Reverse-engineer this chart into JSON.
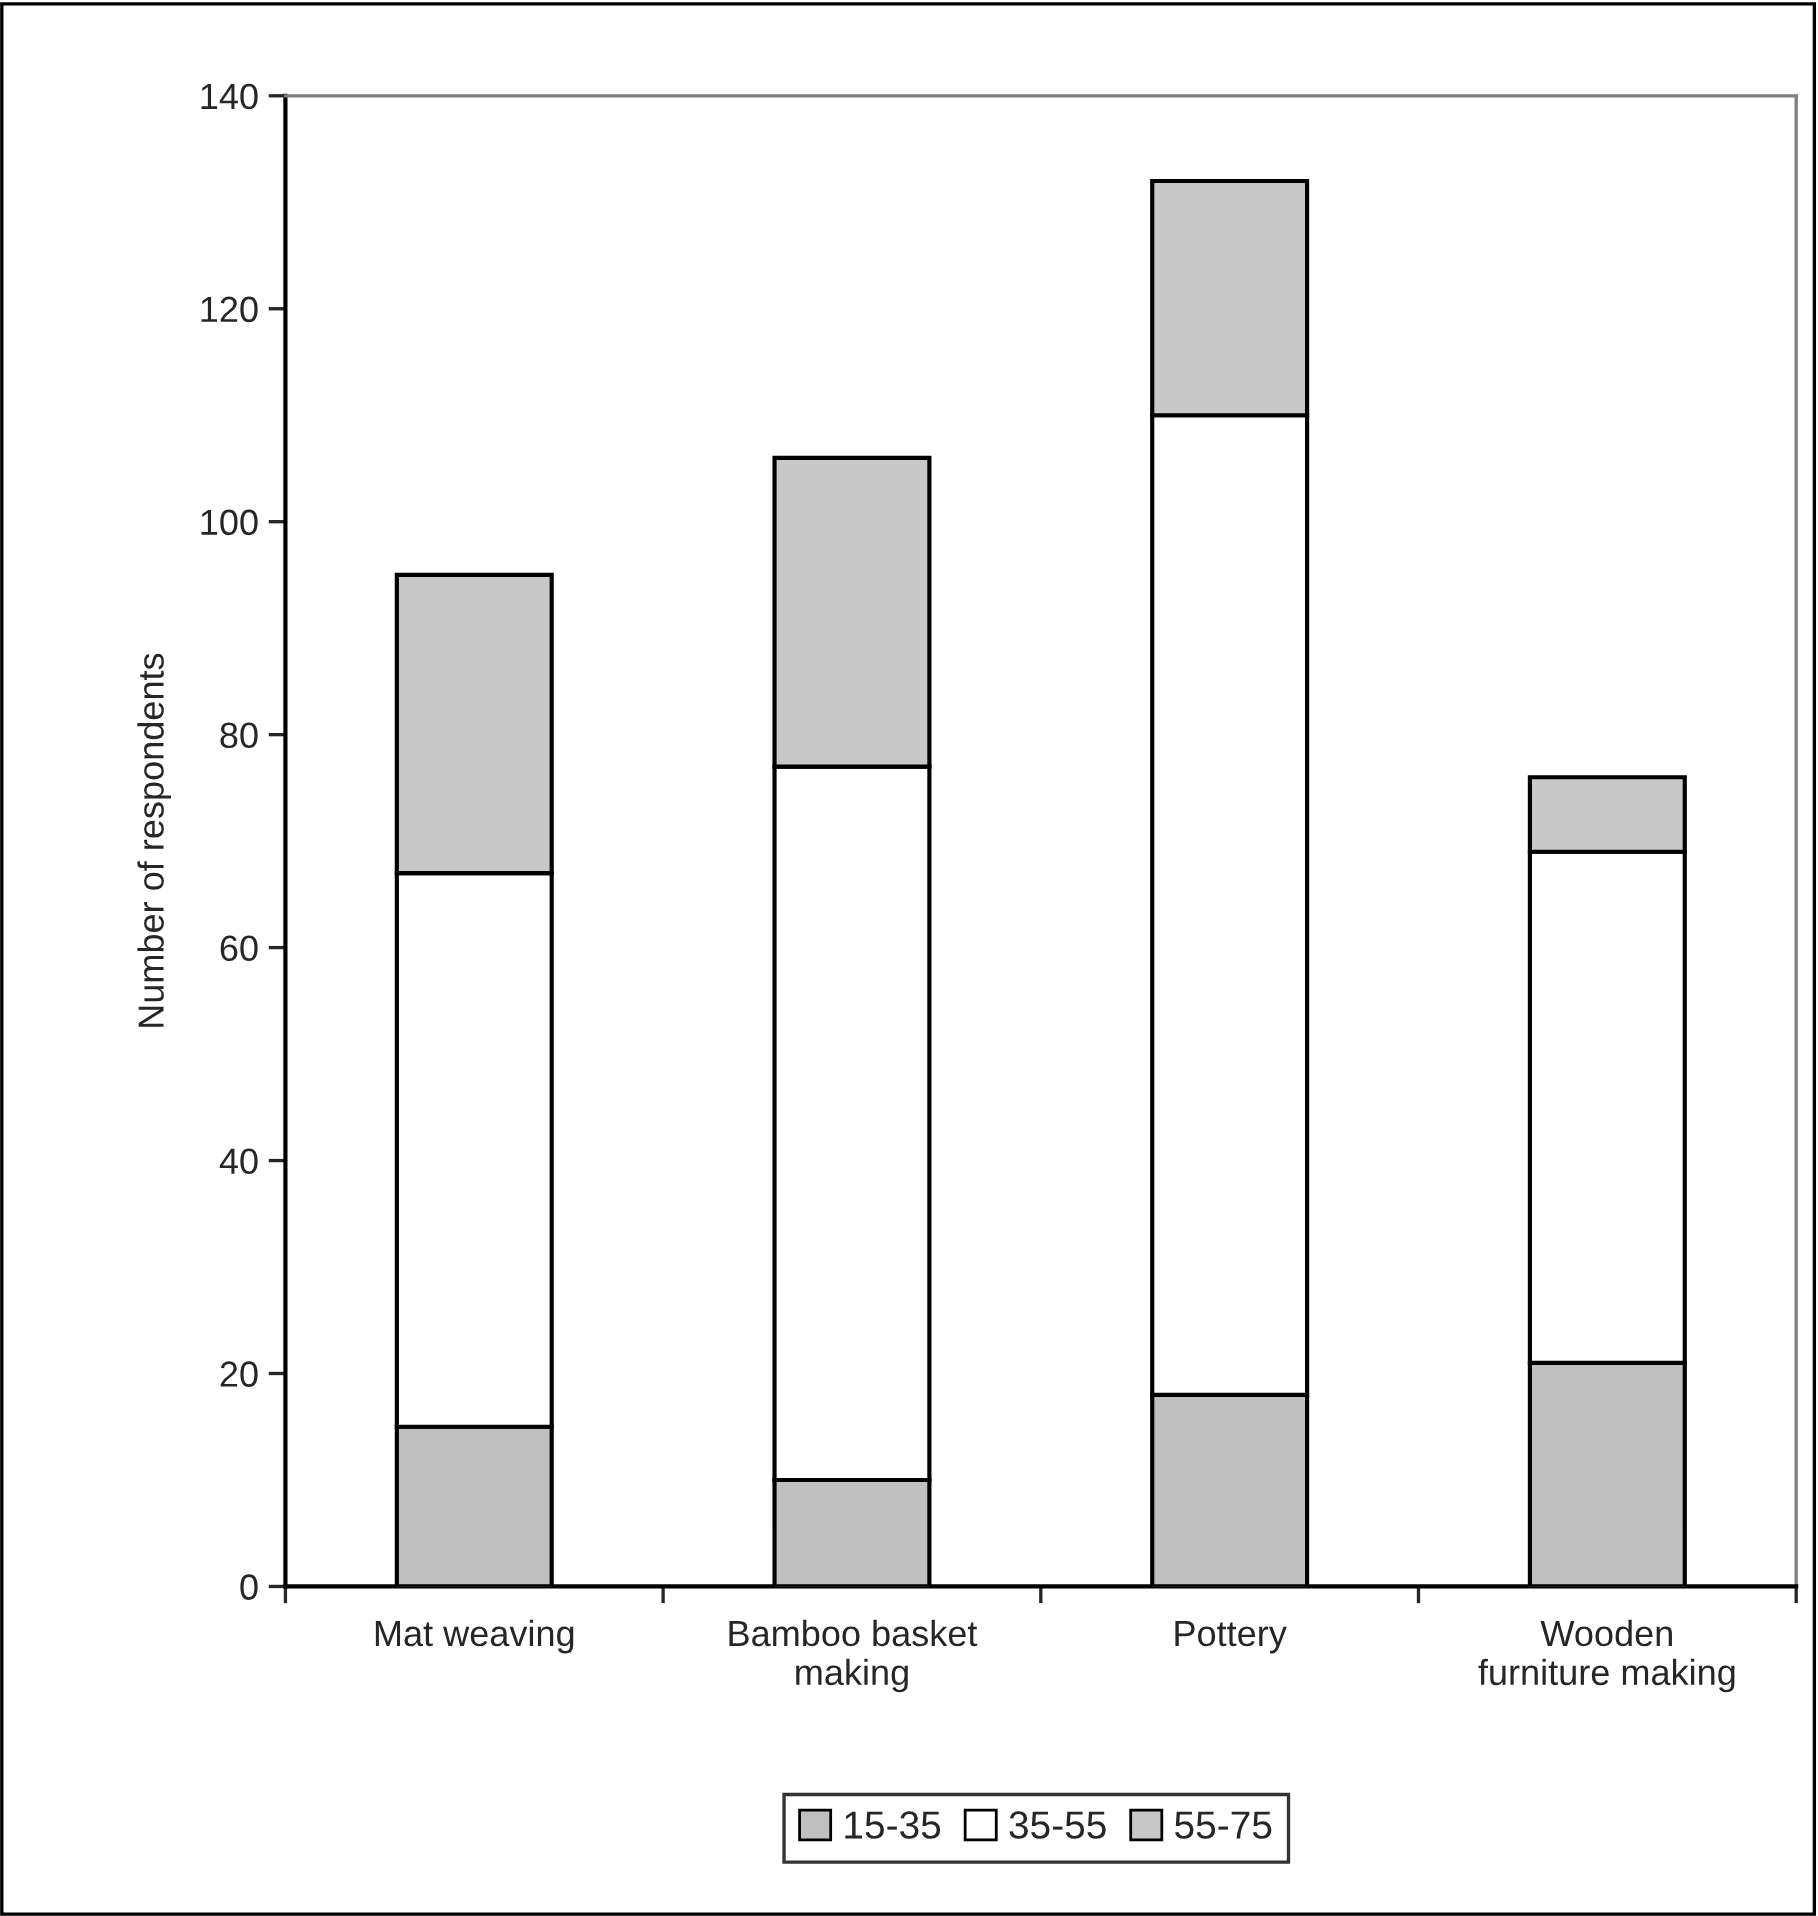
{
  "chart_data": {
    "type": "bar",
    "stacked": true,
    "ylabel": "Number of respondents",
    "categories": [
      "Mat weaving",
      "Bamboo basket\nmaking",
      "Pottery",
      "Wooden\nfurniture making"
    ],
    "series": [
      {
        "name": "15-35",
        "color": "#c0c0c0",
        "values": [
          15,
          10,
          18,
          21
        ]
      },
      {
        "name": "35-55",
        "color": "#ffffff",
        "values": [
          52,
          67,
          92,
          48
        ]
      },
      {
        "name": "55-75",
        "color": "#c8c8c8",
        "values": [
          28,
          29,
          22,
          7
        ]
      }
    ],
    "ylim": [
      0,
      140
    ],
    "yticks": [
      0,
      20,
      40,
      60,
      80,
      100,
      120,
      140
    ],
    "grid": false,
    "legend": "bottom"
  }
}
